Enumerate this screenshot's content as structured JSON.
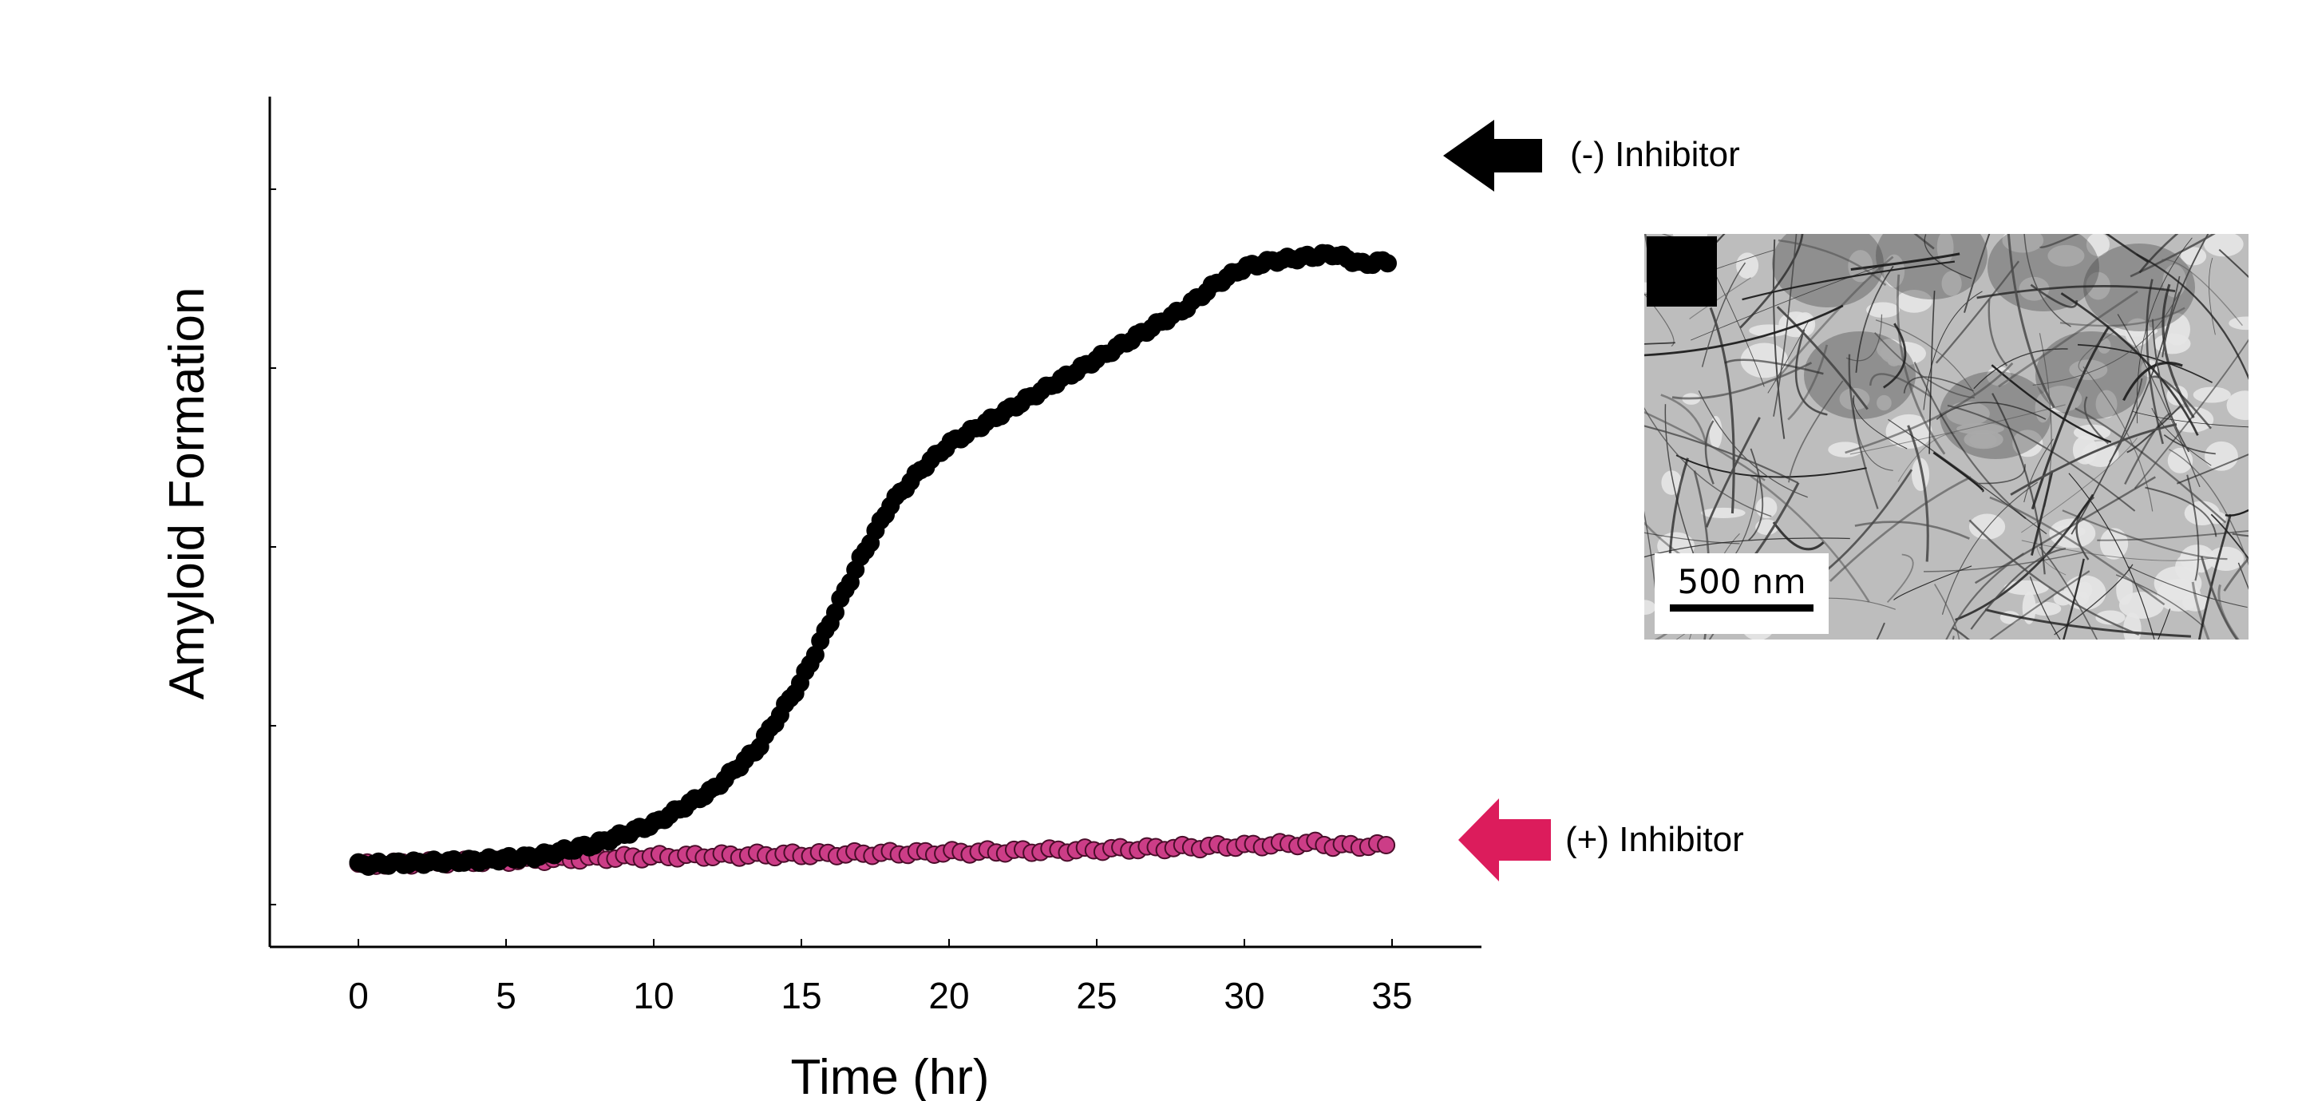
{
  "chart_data": {
    "type": "scatter",
    "xlabel": "Time (hr)",
    "ylabel": "Amyloid Formation",
    "xlim": [
      -3,
      38
    ],
    "ylim": [
      -0.05,
      1.0
    ],
    "xticks": [
      "0",
      "5",
      "10",
      "15",
      "20",
      "25",
      "30",
      "35"
    ],
    "yticks_labeled": false,
    "y_tick_count": 5,
    "series": [
      {
        "name": "(-) Inhibitor",
        "color": "#000000",
        "edge": "#000000",
        "curve_points": [
          [
            0,
            0.0
          ],
          [
            2,
            0.003
          ],
          [
            4,
            0.006
          ],
          [
            6,
            0.012
          ],
          [
            8,
            0.03
          ],
          [
            10,
            0.06
          ],
          [
            12,
            0.11
          ],
          [
            13.5,
            0.17
          ],
          [
            15,
            0.27
          ],
          [
            16,
            0.36
          ],
          [
            17,
            0.45
          ],
          [
            18,
            0.53
          ],
          [
            19,
            0.58
          ],
          [
            20,
            0.62
          ],
          [
            22,
            0.67
          ],
          [
            24,
            0.72
          ],
          [
            26,
            0.77
          ],
          [
            28,
            0.82
          ],
          [
            29,
            0.855
          ],
          [
            30,
            0.88
          ],
          [
            31,
            0.89
          ],
          [
            32,
            0.895
          ],
          [
            33,
            0.9
          ],
          [
            34,
            0.885
          ],
          [
            35,
            0.89
          ]
        ]
      },
      {
        "name": "(+) Inhibitor",
        "color": "#cc3d87",
        "edge": "#4a0d2a",
        "curve_points": [
          [
            0,
            0.0
          ],
          [
            5,
            0.006
          ],
          [
            10,
            0.012
          ],
          [
            15,
            0.015
          ],
          [
            20,
            0.018
          ],
          [
            25,
            0.022
          ],
          [
            30,
            0.028
          ],
          [
            32.5,
            0.032
          ],
          [
            33,
            0.028
          ],
          [
            35,
            0.028
          ]
        ]
      }
    ],
    "annotations": {
      "minus_label": "(-) Inhibitor",
      "plus_label": "(+) Inhibitor",
      "minus_arrow_color": "#000000",
      "plus_arrow_color": "#dc1c5c"
    }
  },
  "inset": {
    "kind": "TEM micrograph",
    "scale_bar_label": "500 nm"
  }
}
